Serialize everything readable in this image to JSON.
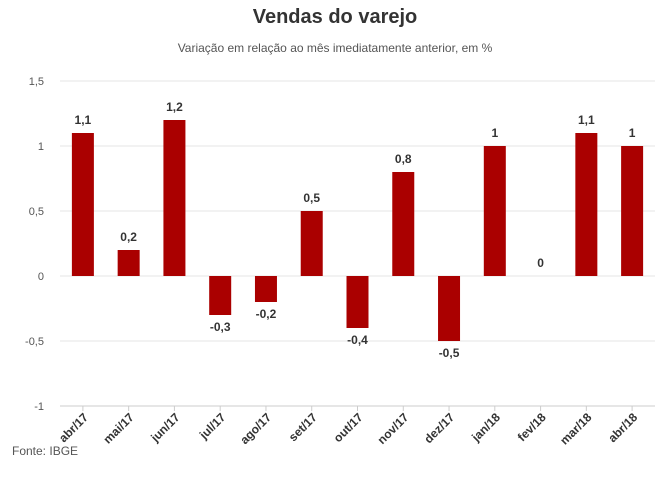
{
  "chart_data": {
    "type": "bar",
    "title": "Vendas do varejo",
    "subtitle": "Variação em relação ao mês imediatamente anterior, em %",
    "source": "Fonte: IBGE",
    "categories": [
      "abr/17",
      "mai/17",
      "jun/17",
      "jul/17",
      "ago/17",
      "set/17",
      "out/17",
      "nov/17",
      "dez/17",
      "jan/18",
      "fev/18",
      "mar/18",
      "abr/18"
    ],
    "values": [
      1.1,
      0.2,
      1.2,
      -0.3,
      -0.2,
      0.5,
      -0.4,
      0.8,
      -0.5,
      1,
      0,
      1.1,
      1
    ],
    "value_labels": [
      "1,1",
      "0,2",
      "1,2",
      "-0,3",
      "-0,2",
      "0,5",
      "-0,4",
      "0,8",
      "-0,5",
      "1",
      "0",
      "1,1",
      "1"
    ],
    "yticks": [
      1.5,
      1,
      0.5,
      0,
      -0.5,
      -1
    ],
    "ytick_labels": [
      "1,5",
      "1",
      "0,5",
      "0",
      "-0,5",
      "-1"
    ],
    "ylim": [
      -1,
      1.5
    ],
    "xlabel": "",
    "ylabel": "",
    "grid": true,
    "bar_color": "#aa0000"
  }
}
